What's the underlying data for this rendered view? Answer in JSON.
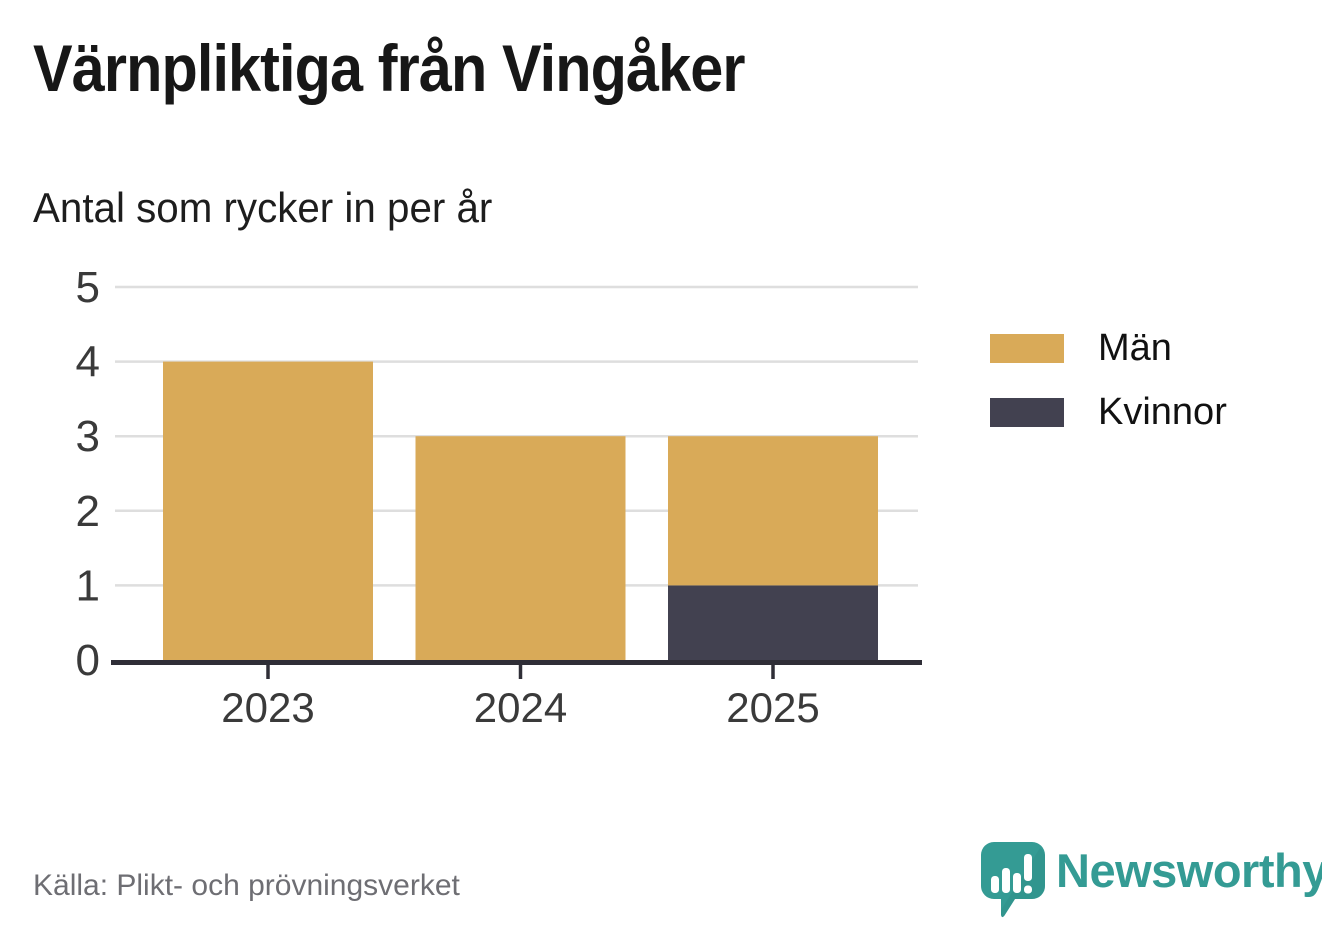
{
  "title": "Värnpliktiga från Vingåker",
  "subtitle": "Antal som rycker in per år",
  "source": "Källa: Plikt- och prövningsverket",
  "branding": {
    "wordmark": "Newsworthy",
    "icon": "speech-bubble-bar-chart-icon",
    "color": "#349b94",
    "color_dark": "#2e8a84"
  },
  "chart_data": {
    "type": "bar",
    "stacked": true,
    "title": "Värnpliktiga från Vingåker",
    "subtitle": "Antal som rycker in per år",
    "categories": [
      "2023",
      "2024",
      "2025"
    ],
    "series": [
      {
        "name": "Män",
        "color": "#d9aa58",
        "values": [
          4,
          3,
          2
        ]
      },
      {
        "name": "Kvinnor",
        "color": "#424150",
        "values": [
          0,
          0,
          1
        ]
      }
    ],
    "stack_order_bottom_up": [
      "Kvinnor",
      "Män"
    ],
    "totals": [
      4,
      3,
      3
    ],
    "xlabel": "",
    "ylabel": "",
    "ylim": [
      0,
      5
    ],
    "yticks": [
      0,
      1,
      2,
      3,
      4,
      5
    ],
    "grid": true,
    "legend_position": "right",
    "axis_color": "#2f2e37",
    "grid_color": "#dedede",
    "tick_label_color": "#3a3a3a"
  }
}
